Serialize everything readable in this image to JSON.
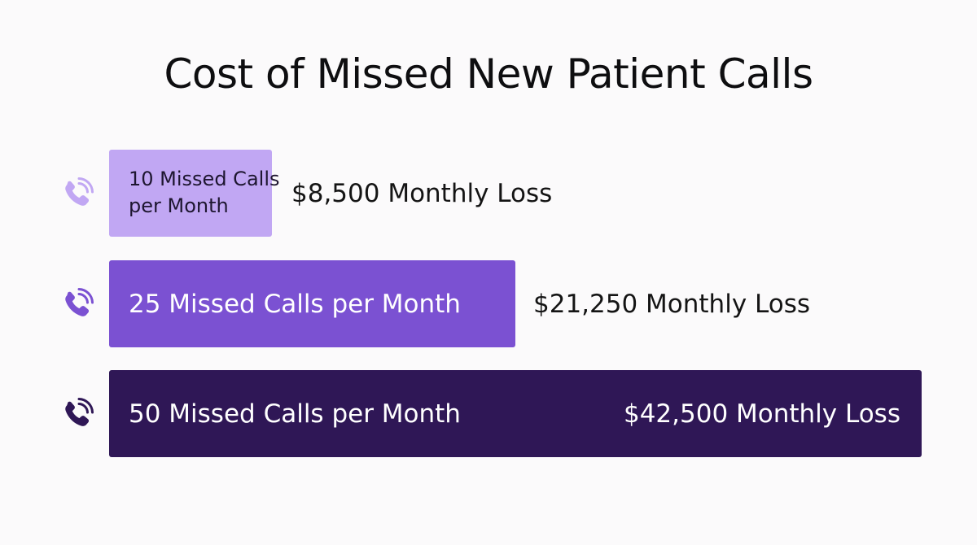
{
  "chart_data": {
    "type": "bar",
    "orientation": "horizontal",
    "title": "Cost of Missed New Patient Calls",
    "categories": [
      "10 Missed Calls per Month",
      "25 Missed Calls per Month",
      "50 Missed Calls per Month"
    ],
    "category_lines": [
      [
        "10 Missed Calls",
        "per Month"
      ],
      [
        "25 Missed Calls per Month"
      ],
      [
        "50 Missed Calls per Month"
      ]
    ],
    "values": [
      8500,
      21250,
      42500
    ],
    "value_labels": [
      "$8,500 Monthly Loss",
      "$21,250 Monthly Loss",
      "$42,500 Monthly Loss"
    ],
    "missed_calls": [
      10,
      25,
      50
    ],
    "colors": [
      "#c1a7f3",
      "#7b51d2",
      "#2f1756"
    ],
    "icon_colors": [
      "#c1a7f3",
      "#7b51d2",
      "#2f1756"
    ],
    "icon": "phone-ringing-icon",
    "xlim": [
      0,
      42500
    ],
    "grid": false,
    "legend": "none"
  }
}
